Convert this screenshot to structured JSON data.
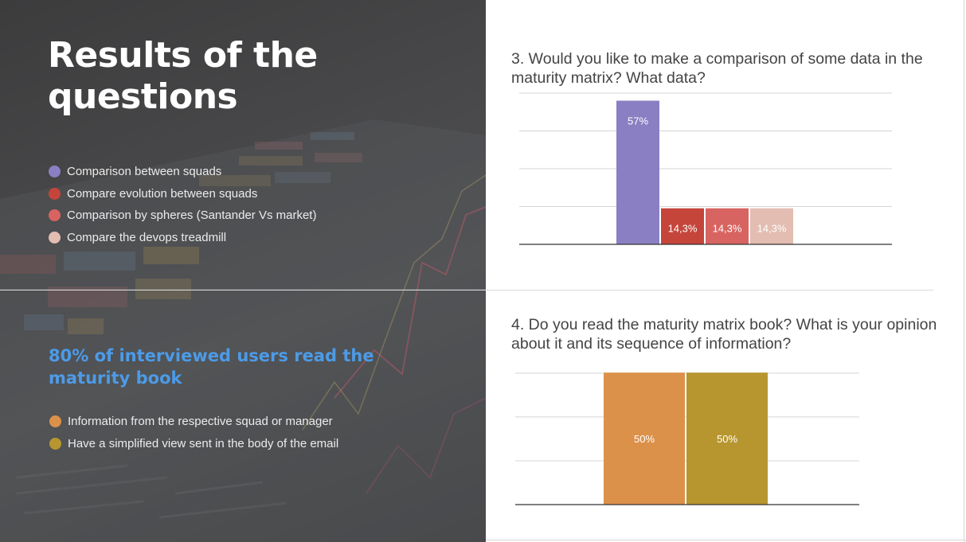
{
  "slide": {
    "title": "Results of the questions",
    "highlight": "80% of interviewed users read the maturity book"
  },
  "legend_q3": [
    {
      "label": "Comparison between squads",
      "color": "#8b7fc3"
    },
    {
      "label": "Compare evolution between squads",
      "color": "#c5453b"
    },
    {
      "label": "Comparison by spheres (Santander Vs market)",
      "color": "#d86461"
    },
    {
      "label": "Compare the devops treadmill",
      "color": "#e3bdb2"
    }
  ],
  "legend_q4": [
    {
      "label": "Information from the respective squad or manager",
      "color": "#dc914a"
    },
    {
      "label": "Have a simplified view sent in the body of the email",
      "color": "#b8962f"
    }
  ],
  "chart_data": [
    {
      "type": "bar",
      "title": "3. Would you like to make a comparison of some data in the maturity matrix? What data?",
      "categories": [
        "Comparison between squads",
        "Compare evolution between squads",
        "Comparison by spheres (Santander Vs market)",
        "Compare the devops treadmill"
      ],
      "values": [
        57,
        14.3,
        14.3,
        14.3
      ],
      "data_labels": [
        "57%",
        "14,3%",
        "14,3%",
        "14,3%"
      ],
      "colors": [
        "#8b7fc3",
        "#c5453b",
        "#d86461",
        "#e3bdb2"
      ],
      "ylim": [
        0,
        60
      ],
      "grid": true,
      "legend": "left panel"
    },
    {
      "type": "bar",
      "title": "4. Do you read the maturity matrix book? What is your opinion about it and its sequence of information?",
      "categories": [
        "Information from the respective squad or manager",
        "Have a simplified view sent in the body of the email"
      ],
      "values": [
        50,
        50
      ],
      "data_labels": [
        "50%",
        "50%"
      ],
      "colors": [
        "#dc914a",
        "#b8962f"
      ],
      "ylim": [
        0,
        60
      ],
      "grid": true,
      "legend": "left panel"
    }
  ]
}
